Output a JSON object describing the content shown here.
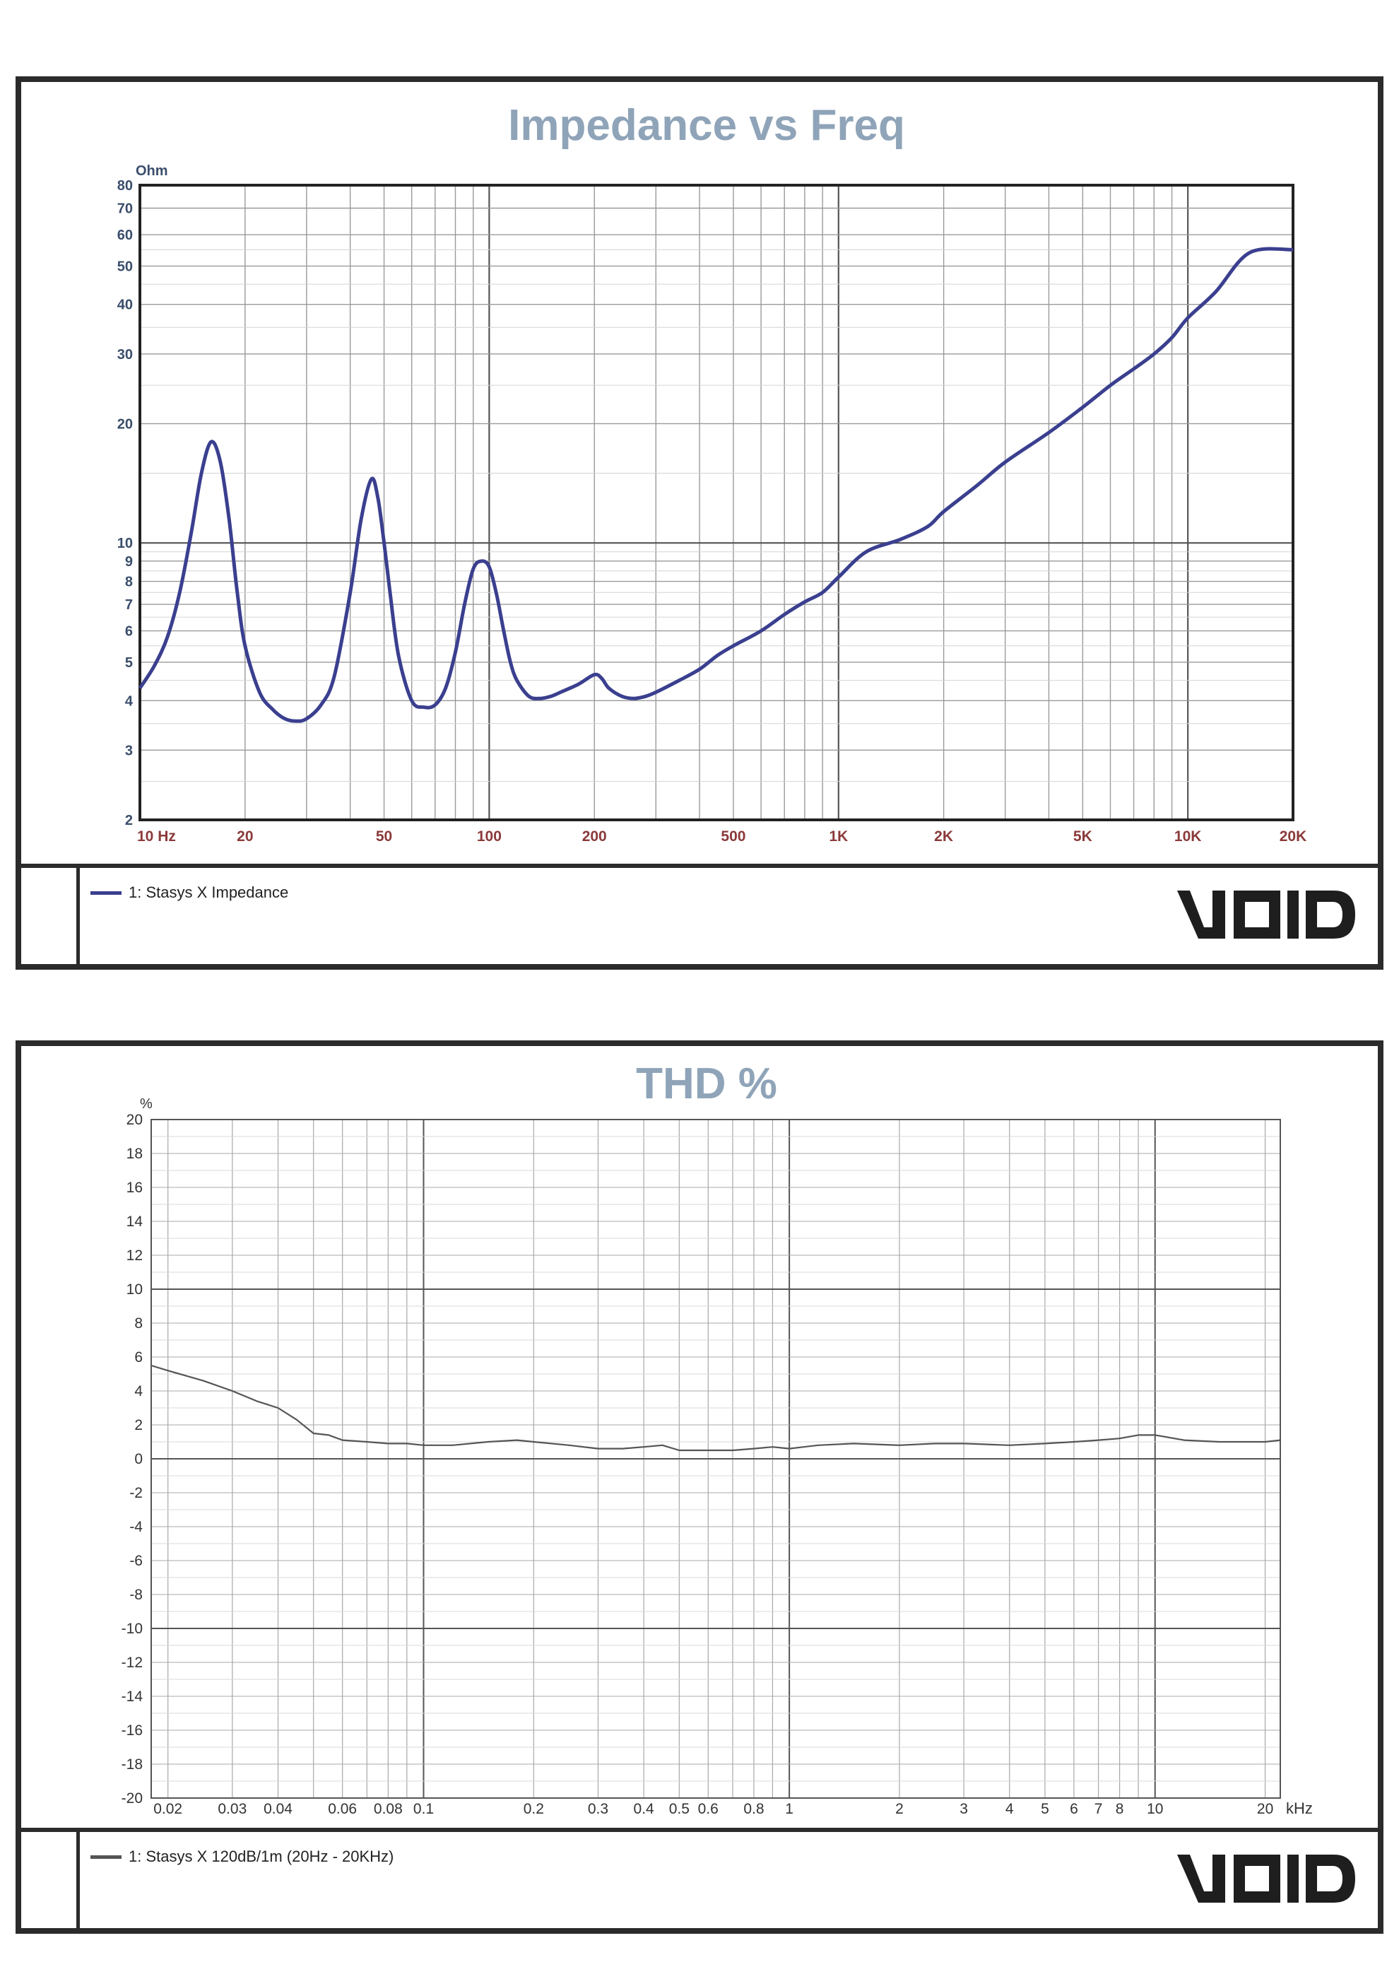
{
  "charts": [
    {
      "id": "impedance",
      "legend_label": "1: Stasys X  Impedance",
      "logo_text": "VOID"
    },
    {
      "id": "thd",
      "legend_label": "1: Stasys X  120dB/1m  (20Hz - 20KHz)",
      "logo_text": "VOID"
    }
  ],
  "colors": {
    "impedance_line": "#3a3f8f",
    "thd_line": "#555555",
    "title": "#8fa4b8",
    "ohm_axis": "#3a4d6b",
    "freq_axis": "#8b3a3a"
  },
  "chart_data": [
    {
      "type": "line",
      "title": "Impedance vs Freq",
      "ylabel": "Ohm",
      "xlabel": "Hz",
      "xscale": "log",
      "yscale": "log",
      "xlim": [
        10,
        20000
      ],
      "ylim": [
        2,
        80
      ],
      "ytick_values": [
        2,
        3,
        4,
        5,
        6,
        7,
        8,
        9,
        10,
        20,
        30,
        40,
        50,
        60,
        70,
        80
      ],
      "ytick_labels": [
        "2",
        "3",
        "4",
        "5",
        "6",
        "7",
        "8",
        "9",
        "10",
        "20",
        "30",
        "40",
        "50",
        "60",
        "70",
        "80"
      ],
      "xtick_values": [
        10,
        20,
        50,
        100,
        200,
        500,
        1000,
        2000,
        5000,
        10000,
        20000
      ],
      "xtick_labels": [
        "10  Hz",
        "20",
        "50",
        "100",
        "200",
        "500",
        "1K",
        "2K",
        "5K",
        "10K",
        "20K"
      ],
      "series": [
        {
          "name": "1: Stasys X  Impedance",
          "x": [
            10,
            11,
            12,
            13,
            14,
            15,
            16,
            17,
            18,
            19,
            20,
            22,
            24,
            26,
            28,
            30,
            33,
            36,
            40,
            43,
            46,
            48,
            50,
            52,
            55,
            60,
            65,
            70,
            75,
            80,
            85,
            90,
            95,
            100,
            105,
            110,
            115,
            120,
            130,
            140,
            150,
            160,
            180,
            200,
            210,
            220,
            240,
            260,
            280,
            300,
            350,
            400,
            450,
            500,
            600,
            700,
            800,
            900,
            1000,
            1200,
            1500,
            1800,
            2000,
            2500,
            3000,
            4000,
            5000,
            6000,
            7000,
            8000,
            9000,
            10000,
            12000,
            15000,
            20000
          ],
          "y": [
            4.3,
            4.9,
            5.8,
            7.5,
            10.5,
            15,
            18,
            16,
            11.5,
            7.5,
            5.5,
            4.2,
            3.8,
            3.6,
            3.55,
            3.6,
            3.9,
            4.6,
            7.5,
            11.5,
            14.5,
            13,
            10,
            7.5,
            5.2,
            4.0,
            3.85,
            3.9,
            4.3,
            5.3,
            7.0,
            8.6,
            9.0,
            8.7,
            7.4,
            6.0,
            5.0,
            4.5,
            4.1,
            4.05,
            4.1,
            4.2,
            4.4,
            4.65,
            4.55,
            4.3,
            4.1,
            4.05,
            4.1,
            4.2,
            4.5,
            4.8,
            5.2,
            5.5,
            6.0,
            6.6,
            7.1,
            7.5,
            8.2,
            9.5,
            10.2,
            11.0,
            12.0,
            14.0,
            16.0,
            19.0,
            22.0,
            25.0,
            27.5,
            30.0,
            33.0,
            37.0,
            43.0,
            54.0,
            55.0
          ]
        }
      ]
    },
    {
      "type": "line",
      "title": "THD %",
      "ylabel": "%",
      "xlabel": "kHz",
      "xscale": "log",
      "yscale": "linear",
      "xlim": [
        0.018,
        22
      ],
      "ylim": [
        -20,
        20
      ],
      "ytick_values": [
        -20,
        -18,
        -16,
        -14,
        -12,
        -10,
        -8,
        -6,
        -4,
        -2,
        0,
        2,
        4,
        6,
        8,
        10,
        12,
        14,
        16,
        18,
        20
      ],
      "ytick_labels": [
        "-20",
        "-18",
        "-16",
        "-14",
        "-12",
        "-10",
        "-8",
        "-6",
        "-4",
        "-2",
        "0",
        "2",
        "4",
        "6",
        "8",
        "10",
        "12",
        "14",
        "16",
        "18",
        "20"
      ],
      "xtick_values": [
        0.02,
        0.03,
        0.04,
        0.06,
        0.08,
        0.1,
        0.2,
        0.3,
        0.4,
        0.5,
        0.6,
        0.8,
        1,
        2,
        3,
        4,
        5,
        6,
        7,
        8,
        10,
        20
      ],
      "xtick_labels": [
        "0.02",
        "0.03",
        "0.04",
        "0.06",
        "0.08",
        "0.1",
        "0.2",
        "0.3",
        "0.4",
        "0.5",
        "0.6",
        "0.8",
        "1",
        "2",
        "3",
        "4",
        "5",
        "6",
        "7",
        "8",
        "10",
        "20"
      ],
      "series": [
        {
          "name": "1: Stasys X  120dB/1m  (20Hz - 20KHz)",
          "x": [
            0.018,
            0.02,
            0.025,
            0.03,
            0.035,
            0.04,
            0.045,
            0.05,
            0.055,
            0.06,
            0.07,
            0.08,
            0.09,
            0.1,
            0.12,
            0.15,
            0.18,
            0.2,
            0.25,
            0.3,
            0.35,
            0.4,
            0.45,
            0.5,
            0.6,
            0.7,
            0.8,
            0.9,
            1,
            1.2,
            1.5,
            2,
            2.5,
            3,
            4,
            5,
            6,
            7,
            8,
            9,
            10,
            12,
            15,
            20,
            22
          ],
          "y": [
            5.5,
            5.2,
            4.6,
            4.0,
            3.4,
            3.0,
            2.3,
            1.5,
            1.4,
            1.1,
            1.0,
            0.9,
            0.9,
            0.8,
            0.8,
            1.0,
            1.1,
            1.0,
            0.8,
            0.6,
            0.6,
            0.7,
            0.8,
            0.5,
            0.5,
            0.5,
            0.6,
            0.7,
            0.6,
            0.8,
            0.9,
            0.8,
            0.9,
            0.9,
            0.8,
            0.9,
            1.0,
            1.1,
            1.2,
            1.4,
            1.4,
            1.1,
            1.0,
            1.0,
            1.1
          ]
        }
      ]
    }
  ]
}
